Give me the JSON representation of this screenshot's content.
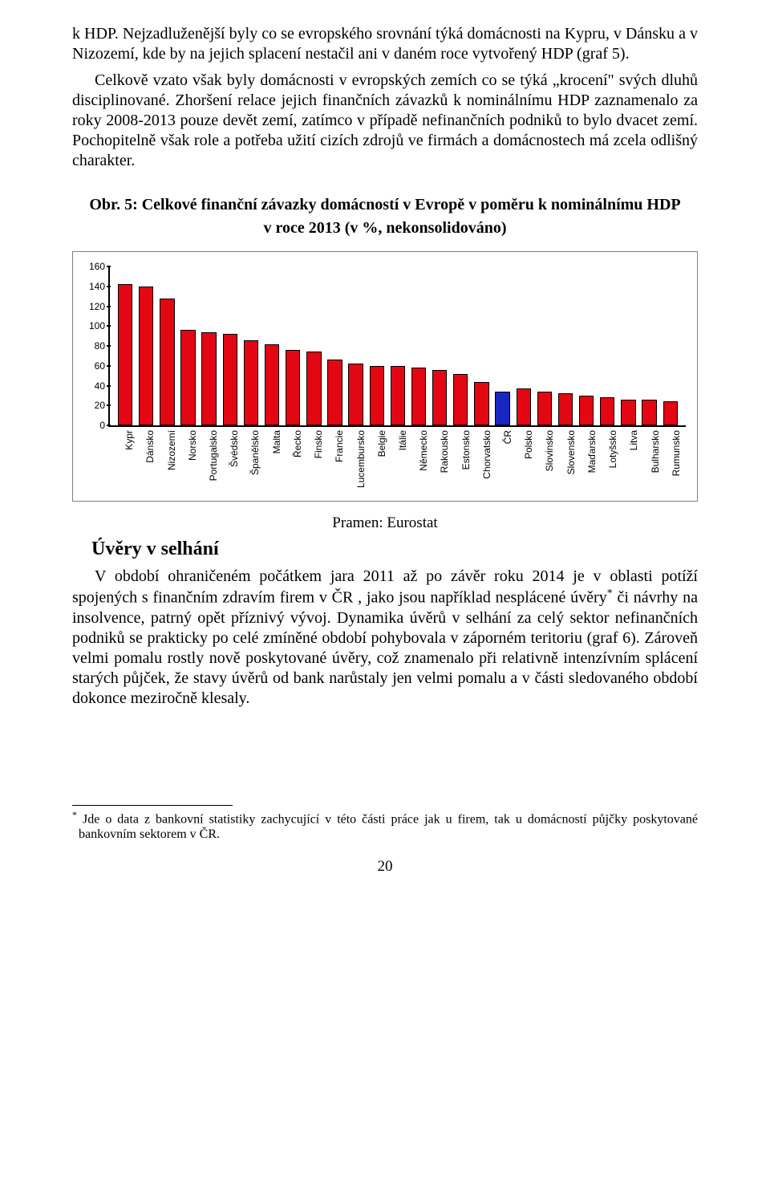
{
  "paragraphs": {
    "p1": "k HDP. Nejzadluženější byly co se evropského srovnání týká domácnosti na Kypru, v Dánsku a v Nizozemí, kde by na jejich splacení nestačil ani v daném roce vytvořený HDP (graf 5).",
    "p2": "Celkově vzato však byly domácnosti v evropských zemích co se týká „krocení\" svých dluhů disciplinované. Zhoršení relace jejich finančních závazků k nominálnímu HDP zaznamenalo za roky 2008-2013 pouze devět zemí, zatímco v případě nefinančních podniků to bylo dvacet zemí. Pochopitelně však role a potřeba užití cizích zdrojů ve firmách a domácnostech má zcela odlišný charakter.",
    "p3_a": "V období ohraničeném počátkem jara 2011 až po závěr roku 2014 je v oblasti potíží spojených s finančním zdravím firem v ČR , jako jsou například nesplácené úvěry",
    "p3_b": " či návrhy na insolvence, patrný opět příznivý vývoj. Dynamika úvěrů v selhání za celý sektor nefinančních podniků se prakticky po celé zmíněné období pohybovala v záporném teritoriu (graf 6). Zároveň velmi pomalu rostly nově poskytované úvěry, což znamenalo při relativně intenzívním splácení starých půjček, že stavy úvěrů od bank narůstaly jen velmi pomalu a v části sledovaného období dokonce meziročně klesaly."
  },
  "chart": {
    "title_line1": "Obr. 5:  Celkové finanční závazky domácností v Evropě v poměru k nominálnímu HDP",
    "title_line2": "v roce 2013 (v %, nekonsolidováno)",
    "y_ticks": [
      0,
      20,
      40,
      60,
      80,
      100,
      120,
      140,
      160
    ],
    "ylim_max": 160,
    "default_bar_color": "#e30613",
    "highlight_bar_color": "#1926c4",
    "bar_border_color": "#000000",
    "background_color": "#ffffff",
    "axis_font_family": "Arial, sans-serif",
    "axis_font_size": 12,
    "categories": [
      {
        "label": "Kypr",
        "value": 142
      },
      {
        "label": "Dánsko",
        "value": 140
      },
      {
        "label": "Nizozemí",
        "value": 128
      },
      {
        "label": "Norsko",
        "value": 96
      },
      {
        "label": "Portugalsko",
        "value": 94
      },
      {
        "label": "Švédsko",
        "value": 92
      },
      {
        "label": "Španělsko",
        "value": 86
      },
      {
        "label": "Malta",
        "value": 82
      },
      {
        "label": "Řecko",
        "value": 76
      },
      {
        "label": "Finsko",
        "value": 74
      },
      {
        "label": "Francie",
        "value": 66
      },
      {
        "label": "Lucembursko",
        "value": 62
      },
      {
        "label": "Belgie",
        "value": 60
      },
      {
        "label": "Itálie",
        "value": 60
      },
      {
        "label": "Německo",
        "value": 58
      },
      {
        "label": "Rakousko",
        "value": 56
      },
      {
        "label": "Estonsko",
        "value": 52
      },
      {
        "label": "Chorvatsko",
        "value": 44
      },
      {
        "label": "ČR",
        "value": 34,
        "highlight": true
      },
      {
        "label": "Polsko",
        "value": 37
      },
      {
        "label": "Slovinsko",
        "value": 34
      },
      {
        "label": "Slovensko",
        "value": 32
      },
      {
        "label": "Maďarsko",
        "value": 30
      },
      {
        "label": "Lotyšsko",
        "value": 28
      },
      {
        "label": "Litva",
        "value": 26
      },
      {
        "label": "Bulharsko",
        "value": 26
      },
      {
        "label": "Rumunsko",
        "value": 24
      }
    ]
  },
  "source_label": "Pramen: Eurostat",
  "section_heading": "Úvěry v selhání",
  "footnote_marker": "*",
  "footnote_text": " Jde o data z bankovní statistiky zachycující v této části práce jak u firem, tak u domácností půjčky poskytované bankovním sektorem v ČR.",
  "page_number": "20"
}
